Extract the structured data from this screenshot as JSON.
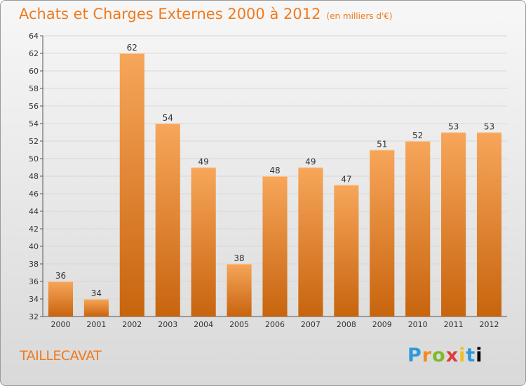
{
  "header": {
    "title": "Achats et Charges Externes 2000 à 2012",
    "subtitle": "(en milliers d'€)"
  },
  "footer": {
    "commune": "TAILLECAVAT",
    "logo_letters": [
      "P",
      "r",
      "o",
      "x",
      "i",
      "t",
      "i"
    ]
  },
  "colors": {
    "title": "#f07a1e",
    "bar_top": "#f7a65a",
    "bar_bottom": "#c8640e",
    "grid": "#d8d8d8"
  },
  "chart_data": {
    "type": "bar",
    "title": "Achats et Charges Externes 2000 à 2012",
    "subtitle": "(en milliers d'€)",
    "categories": [
      "2000",
      "2001",
      "2002",
      "2003",
      "2004",
      "2005",
      "2006",
      "2007",
      "2008",
      "2009",
      "2010",
      "2011",
      "2012"
    ],
    "values": [
      36,
      34,
      62,
      54,
      49,
      38,
      48,
      49,
      47,
      51,
      52,
      53,
      53
    ],
    "ylim": [
      32,
      64
    ],
    "yticks": [
      32,
      34,
      36,
      38,
      40,
      42,
      44,
      46,
      48,
      50,
      52,
      54,
      56,
      58,
      60,
      62,
      64
    ],
    "grid": true,
    "legend": "none"
  }
}
